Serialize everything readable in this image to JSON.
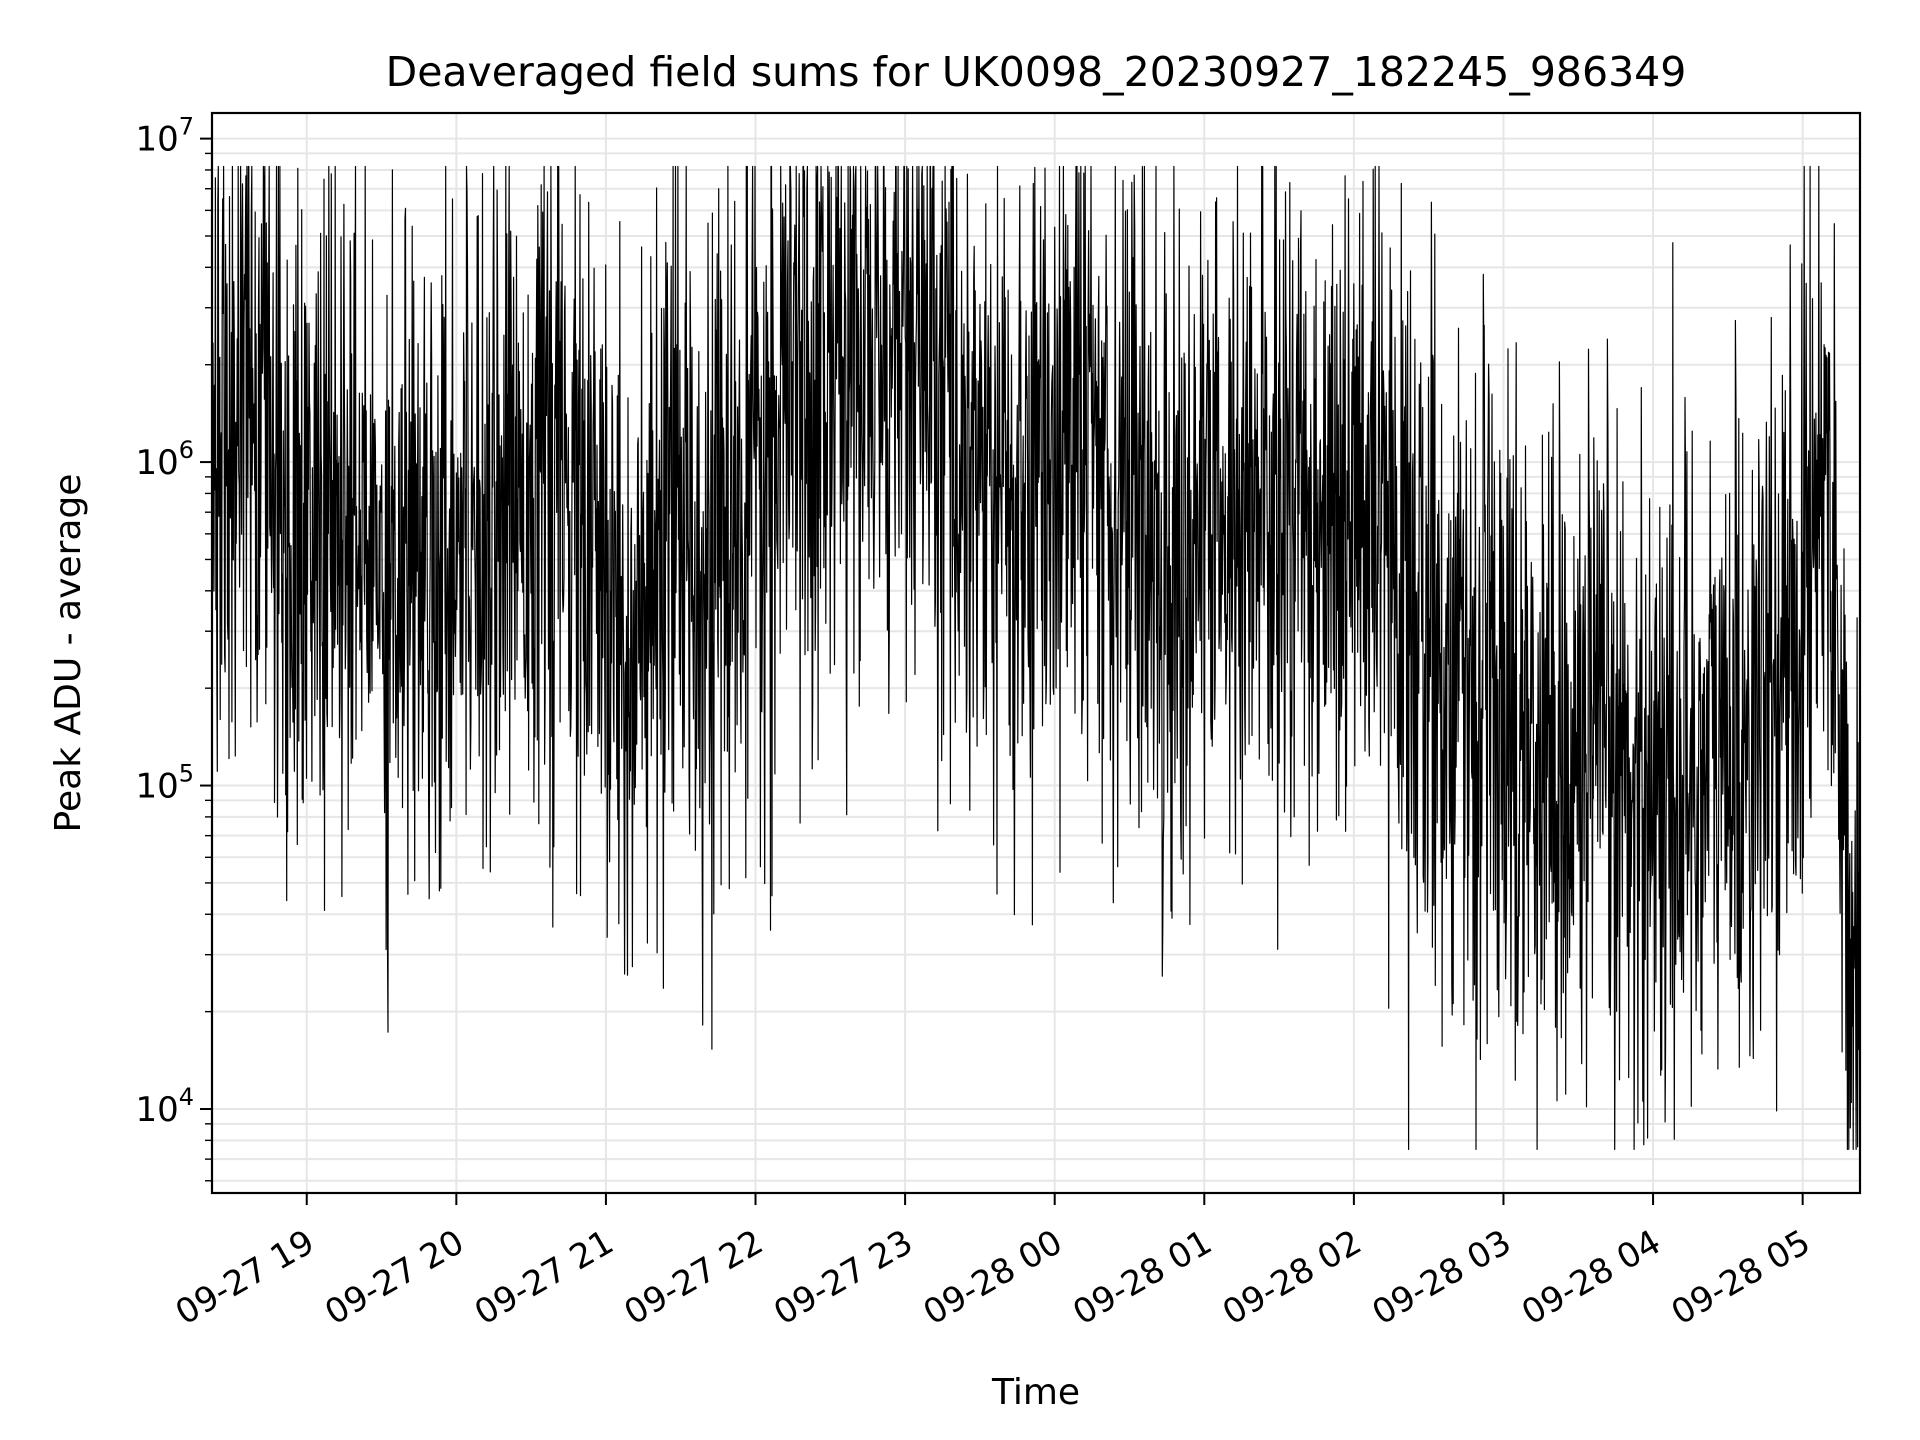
{
  "chart_data": {
    "type": "line",
    "title": "Deaveraged field sums for UK0098_20230927_182245_986349",
    "xlabel": "Time",
    "ylabel": "Peak ADU - average",
    "yscale": "log",
    "ylim": [
      5500,
      12000000
    ],
    "xlim": [
      "2023-09-27 18:22",
      "2023-09-28 05:23"
    ],
    "grid": true,
    "x_tick_labels": [
      "09-27 19",
      "09-27 20",
      "09-27 21",
      "09-27 22",
      "09-27 23",
      "09-28 00",
      "09-28 01",
      "09-28 02",
      "09-28 03",
      "09-28 04",
      "09-28 05"
    ],
    "x_tick_values": [
      "2023-09-27 19:00",
      "2023-09-27 20:00",
      "2023-09-27 21:00",
      "2023-09-27 22:00",
      "2023-09-27 23:00",
      "2023-09-28 00:00",
      "2023-09-28 01:00",
      "2023-09-28 02:00",
      "2023-09-28 03:00",
      "2023-09-28 04:00",
      "2023-09-28 05:00"
    ],
    "y_ticks": [
      {
        "value": 10000,
        "base": "10",
        "exp": "4"
      },
      {
        "value": 100000,
        "base": "10",
        "exp": "5"
      },
      {
        "value": 1000000,
        "base": "10",
        "exp": "6"
      },
      {
        "value": 10000000,
        "base": "10",
        "exp": "7"
      }
    ],
    "series": [
      {
        "color": "#000000",
        "x": [
          "2023-09-27 18:22",
          "2023-09-27 18:30",
          "2023-09-27 18:40",
          "2023-09-27 18:45",
          "2023-09-27 18:50",
          "2023-09-27 19:00",
          "2023-09-27 19:15",
          "2023-09-27 19:30",
          "2023-09-27 19:45",
          "2023-09-27 20:00",
          "2023-09-27 20:15",
          "2023-09-27 20:30",
          "2023-09-27 20:45",
          "2023-09-27 21:00",
          "2023-09-27 21:15",
          "2023-09-27 21:30",
          "2023-09-27 21:45",
          "2023-09-27 22:00",
          "2023-09-27 22:15",
          "2023-09-27 22:30",
          "2023-09-27 22:45",
          "2023-09-27 23:00",
          "2023-09-27 23:15",
          "2023-09-27 23:30",
          "2023-09-27 23:45",
          "2023-09-28 00:00",
          "2023-09-28 00:15",
          "2023-09-28 00:30",
          "2023-09-28 00:45",
          "2023-09-28 01:00",
          "2023-09-28 01:15",
          "2023-09-28 01:30",
          "2023-09-28 01:45",
          "2023-09-28 02:00",
          "2023-09-28 02:15",
          "2023-09-28 02:30",
          "2023-09-28 02:45",
          "2023-09-28 03:00",
          "2023-09-28 03:15",
          "2023-09-28 03:30",
          "2023-09-28 03:45",
          "2023-09-28 04:00",
          "2023-09-28 04:15",
          "2023-09-28 04:30",
          "2023-09-28 04:45",
          "2023-09-28 05:00",
          "2023-09-28 05:05",
          "2023-09-28 05:10",
          "2023-09-28 05:15",
          "2023-09-28 05:18",
          "2023-09-28 05:20",
          "2023-09-28 05:23"
        ],
        "center": [
          600000,
          1200000,
          2000000,
          1000000,
          600000,
          650000,
          600000,
          500000,
          550000,
          650000,
          850000,
          900000,
          800000,
          350000,
          250000,
          700000,
          500000,
          700000,
          1600000,
          2000000,
          2200000,
          2300000,
          1500000,
          1000000,
          600000,
          1200000,
          1300000,
          800000,
          500000,
          600000,
          650000,
          700000,
          800000,
          700000,
          500000,
          300000,
          200000,
          180000,
          130000,
          120000,
          110000,
          100000,
          110000,
          130000,
          160000,
          350000,
          900000,
          1200000,
          200000,
          60000,
          15000,
          18000
        ],
        "spread": [
          1.5,
          1.6,
          1.7,
          1.6,
          1.6,
          1.6,
          1.6,
          1.6,
          1.6,
          1.6,
          1.5,
          1.5,
          1.6,
          1.7,
          1.7,
          1.6,
          1.6,
          1.6,
          1.6,
          1.7,
          1.6,
          1.6,
          1.6,
          1.6,
          1.7,
          1.6,
          1.6,
          1.7,
          1.7,
          1.6,
          1.6,
          1.6,
          1.6,
          1.6,
          1.6,
          1.6,
          1.6,
          1.6,
          1.6,
          1.6,
          1.6,
          1.6,
          1.6,
          1.6,
          1.5,
          1.5,
          1.5,
          1.3,
          1.3,
          1.3,
          1.5,
          1.5
        ]
      }
    ]
  }
}
